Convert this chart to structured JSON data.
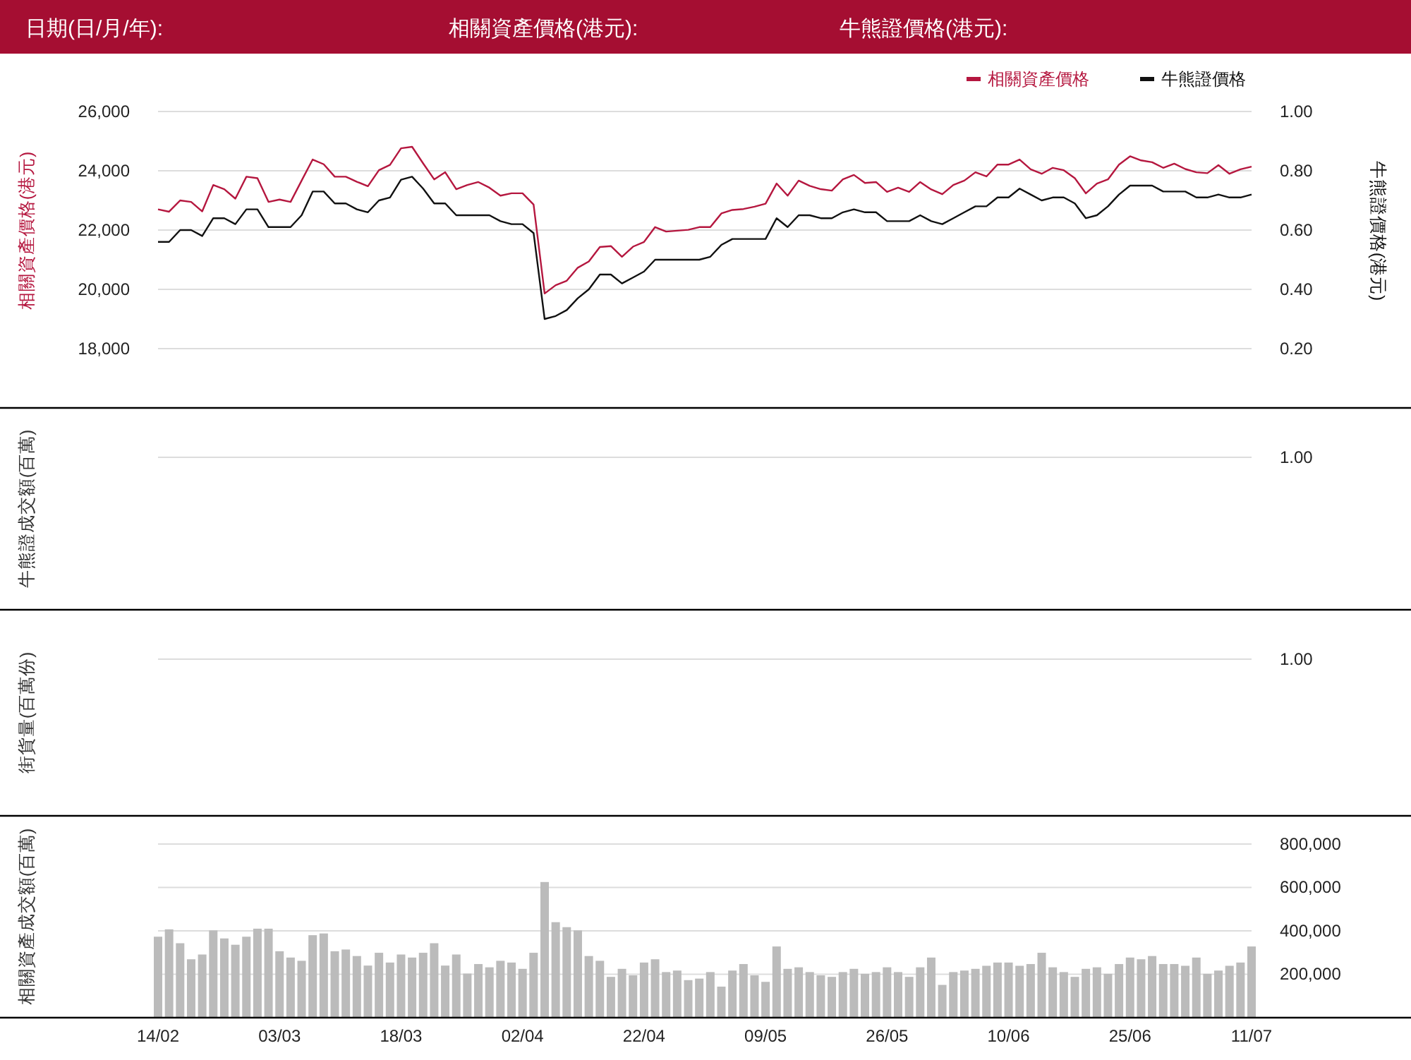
{
  "chart_data": [
    {
      "type": "line",
      "annotations": [
        "日期(日/月/年):",
        "相關資產價格(港元):",
        "牛熊證價格(港元):"
      ],
      "ylabel": "相關資產價格(港元)",
      "y2label": "牛熊證價格(港元)",
      "categories": [
        null,
        null,
        null,
        null,
        null,
        null,
        null,
        null,
        null,
        null,
        null,
        null,
        null,
        null,
        null,
        null,
        null,
        null,
        null,
        null,
        null,
        null,
        null,
        null,
        null,
        null,
        null,
        null,
        null,
        null,
        null,
        null,
        null,
        null,
        null,
        null,
        null,
        null,
        null,
        null,
        null,
        null,
        null,
        null,
        null,
        null,
        null,
        null,
        null,
        null,
        null,
        null,
        null,
        null,
        null,
        null,
        null,
        null,
        null,
        null,
        null,
        null,
        null,
        null,
        null,
        null,
        null,
        null,
        null,
        null,
        null,
        null,
        null,
        null,
        null,
        null,
        null,
        null,
        null,
        null,
        null,
        null,
        null,
        null,
        null,
        null,
        null,
        null,
        null,
        null,
        null,
        null,
        null,
        null,
        null,
        null,
        null,
        null,
        null,
        null
      ],
      "series": [
        {
          "name": "相關資產價格",
          "color": "#b5173f",
          "values": [
            22700,
            22620,
            23000,
            22950,
            22630,
            23520,
            23380,
            23060,
            23800,
            23750,
            22950,
            23030,
            22950,
            23670,
            24380,
            24220,
            23800,
            23800,
            23630,
            23480,
            24020,
            24200,
            24760,
            24810,
            24250,
            23710,
            23950,
            23380,
            23520,
            23620,
            23430,
            23160,
            23240,
            23240,
            22860,
            19860,
            20140,
            20290,
            20730,
            20940,
            21430,
            21460,
            21100,
            21440,
            21600,
            22100,
            21950,
            21980,
            22010,
            22100,
            22100,
            22560,
            22680,
            22710,
            22790,
            22890,
            23570,
            23160,
            23670,
            23490,
            23380,
            23330,
            23710,
            23860,
            23590,
            23620,
            23290,
            23430,
            23290,
            23620,
            23370,
            23210,
            23520,
            23670,
            23950,
            23810,
            24210,
            24210,
            24380,
            24050,
            23900,
            24100,
            24020,
            23750,
            23240,
            23570,
            23710,
            24210,
            24490,
            24350,
            24290,
            24100,
            24240,
            24060,
            23950,
            23920,
            24190,
            23900,
            24050,
            24140
          ]
        },
        {
          "name": "牛熊證價格",
          "color": "#111111",
          "axis": "y2",
          "values": [
            0.56,
            0.56,
            0.6,
            0.6,
            0.58,
            0.64,
            0.64,
            0.62,
            0.67,
            0.67,
            0.61,
            0.61,
            0.61,
            0.65,
            0.73,
            0.73,
            0.69,
            0.69,
            0.67,
            0.66,
            0.7,
            0.71,
            0.77,
            0.78,
            0.74,
            0.69,
            0.69,
            0.65,
            0.65,
            0.65,
            0.65,
            0.63,
            0.62,
            0.62,
            0.59,
            0.3,
            0.31,
            0.33,
            0.37,
            0.4,
            0.45,
            0.45,
            0.42,
            0.44,
            0.46,
            0.5,
            0.5,
            0.5,
            0.5,
            0.5,
            0.51,
            0.55,
            0.57,
            0.57,
            0.57,
            0.57,
            0.64,
            0.61,
            0.65,
            0.65,
            0.64,
            0.64,
            0.66,
            0.67,
            0.66,
            0.66,
            0.63,
            0.63,
            0.63,
            0.65,
            0.63,
            0.62,
            0.64,
            0.66,
            0.68,
            0.68,
            0.71,
            0.71,
            0.74,
            0.72,
            0.7,
            0.71,
            0.71,
            0.69,
            0.64,
            0.65,
            0.68,
            0.72,
            0.75,
            0.75,
            0.75,
            0.73,
            0.73,
            0.73,
            0.71,
            0.71,
            0.72,
            0.71,
            0.71,
            0.72
          ]
        }
      ],
      "ylim": [
        18000,
        26000
      ],
      "yticks": [
        {
          "value": 18000,
          "label": "18,000"
        },
        {
          "value": 20000,
          "label": "20,000"
        },
        {
          "value": 22000,
          "label": "22,000"
        },
        {
          "value": 24000,
          "label": "24,000"
        },
        {
          "value": 26000,
          "label": "26,000"
        }
      ],
      "y2lim": [
        0.2,
        1.0
      ],
      "y2ticks": [
        {
          "value": 0.2,
          "label": "0.20"
        },
        {
          "value": 0.4,
          "label": "0.40"
        },
        {
          "value": 0.6,
          "label": "0.60"
        },
        {
          "value": 0.8,
          "label": "0.80"
        },
        {
          "value": 1,
          "label": "1.00"
        }
      ],
      "grid": "y",
      "legend": "top right",
      "tick_labels": "y"
    },
    {
      "type": "other",
      "ylabel": "牛熊證成交額(百萬)",
      "annotations": [
        "1.00"
      ]
    },
    {
      "type": "other",
      "ylabel": "街貨量(百萬份)",
      "annotations": [
        "1.00"
      ]
    },
    {
      "type": "bar",
      "ylabel": "相關資產成交額(百萬)",
      "color": "#bbbbbb",
      "categories": [
        "14/02",
        null,
        null,
        null,
        null,
        null,
        null,
        null,
        null,
        null,
        null,
        "03/03",
        null,
        null,
        null,
        null,
        null,
        null,
        null,
        null,
        null,
        null,
        "18/03",
        null,
        null,
        null,
        null,
        null,
        null,
        null,
        null,
        null,
        null,
        "02/04",
        null,
        null,
        null,
        null,
        null,
        null,
        null,
        null,
        null,
        null,
        "22/04",
        null,
        null,
        null,
        null,
        null,
        null,
        null,
        null,
        null,
        null,
        "09/05",
        null,
        null,
        null,
        null,
        null,
        null,
        null,
        null,
        null,
        null,
        "26/05",
        null,
        null,
        null,
        null,
        null,
        null,
        null,
        null,
        null,
        null,
        "10/06",
        null,
        null,
        null,
        null,
        null,
        null,
        null,
        null,
        null,
        null,
        "25/06",
        null,
        null,
        null,
        null,
        null,
        null,
        null,
        null,
        null,
        null,
        "11/07"
      ],
      "values": [
        373000,
        407000,
        343000,
        269000,
        291000,
        402000,
        365000,
        336000,
        373000,
        410000,
        410000,
        306000,
        277000,
        262000,
        380000,
        388000,
        306000,
        314000,
        284000,
        240000,
        299000,
        254000,
        291000,
        277000,
        299000,
        343000,
        240000,
        291000,
        203000,
        247000,
        232000,
        262000,
        254000,
        225000,
        299000,
        625000,
        440000,
        417000,
        402000,
        284000,
        262000,
        188000,
        225000,
        195000,
        254000,
        269000,
        210000,
        217000,
        173000,
        180000,
        210000,
        143000,
        217000,
        247000,
        195000,
        165000,
        328000,
        225000,
        232000,
        210000,
        195000,
        188000,
        210000,
        225000,
        202000,
        210000,
        232000,
        210000,
        188000,
        232000,
        277000,
        151000,
        210000,
        217000,
        225000,
        239000,
        254000,
        254000,
        239000,
        247000,
        299000,
        232000,
        210000,
        188000,
        225000,
        232000,
        202000,
        247000,
        277000,
        269000,
        284000,
        247000,
        247000,
        239000,
        277000,
        202000,
        217000,
        239000,
        254000,
        328000
      ],
      "ylim": [
        0,
        930000
      ],
      "yticks": [
        {
          "value": 200000,
          "label": "200,000"
        },
        {
          "value": 400000,
          "label": "400,000"
        },
        {
          "value": 600000,
          "label": "600,000"
        },
        {
          "value": 800000,
          "label": "800,000"
        }
      ],
      "grid": "y"
    }
  ]
}
